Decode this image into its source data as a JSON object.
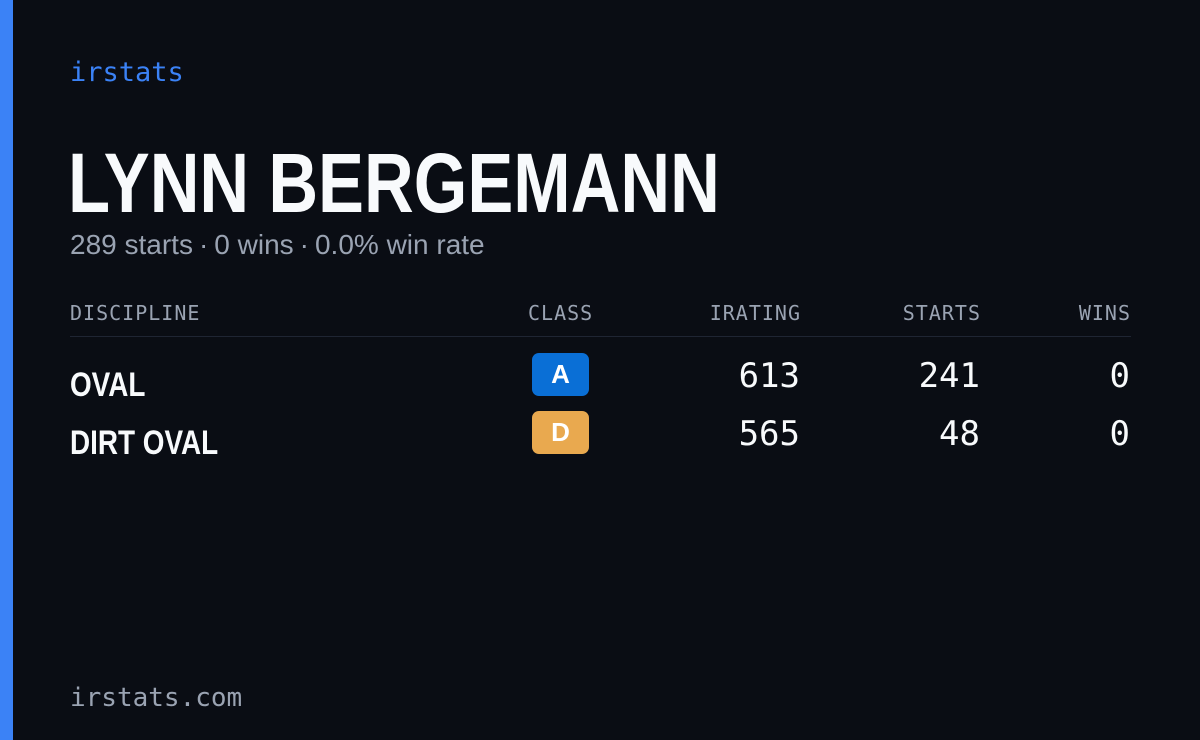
{
  "brand": "irstats",
  "driver": {
    "name": "LYNN BERGEMANN",
    "summary": {
      "starts": "289 starts",
      "wins": "0 wins",
      "win_rate": "0.0% win rate",
      "separator": "·"
    }
  },
  "table": {
    "headers": {
      "discipline": "DISCIPLINE",
      "class": "CLASS",
      "irating": "IRATING",
      "starts": "STARTS",
      "wins": "WINS"
    },
    "rows": [
      {
        "discipline": "OVAL",
        "class": "A",
        "class_color": "#0a6fd6",
        "class_text_color": "#ffffff",
        "irating": "613",
        "starts": "241",
        "wins": "0"
      },
      {
        "discipline": "DIRT OVAL",
        "class": "D",
        "class_color": "#e9a94f",
        "class_text_color": "#ffffff",
        "irating": "565",
        "starts": "48",
        "wins": "0"
      }
    ]
  },
  "footer": "irstats.com",
  "colors": {
    "accent": "#3b82f6",
    "background": "#0a0d14",
    "muted": "#9aa3b2",
    "text": "#f8fafc"
  }
}
